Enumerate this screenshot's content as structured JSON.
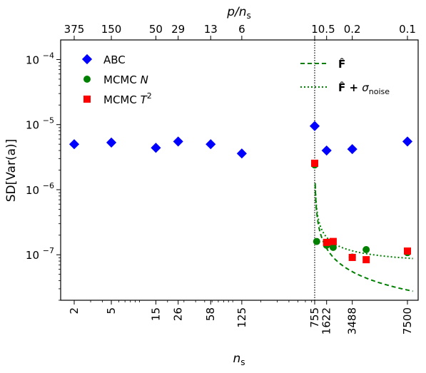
{
  "chart_data": {
    "type": "scatter",
    "xlabel_main": "n",
    "xlabel_sub": "s",
    "ylabel": "SD[Var(a)]",
    "top_axis": {
      "label_main": "p/n",
      "label_sub": "s",
      "ticks": [
        {
          "n": 2,
          "label": "375"
        },
        {
          "n": 5,
          "label": "150"
        },
        {
          "n": 15,
          "label": "50"
        },
        {
          "n": 26,
          "label": "29"
        },
        {
          "n": 58,
          "label": "13"
        },
        {
          "n": 125,
          "label": "6"
        },
        {
          "n": 755,
          "label": "1"
        },
        {
          "n": 1622,
          "label": "0.5"
        },
        {
          "n": 3488,
          "label": "0.2"
        },
        {
          "n": 7500,
          "label": "0.1"
        }
      ]
    },
    "x_ticks": [
      {
        "n": 2,
        "label": "2"
      },
      {
        "n": 5,
        "label": "5"
      },
      {
        "n": 15,
        "label": "15"
      },
      {
        "n": 26,
        "label": "26"
      },
      {
        "n": 58,
        "label": "58"
      },
      {
        "n": 125,
        "label": "125"
      },
      {
        "n": 755,
        "label": "755"
      },
      {
        "n": 1622,
        "label": "1622"
      },
      {
        "n": 3488,
        "label": "3488"
      },
      {
        "n": 7500,
        "label": "7500"
      }
    ],
    "x_scale": "log below 755, linear above 755",
    "y_scale": "log",
    "ylim": [
      2e-08,
      0.0002
    ],
    "y_ticks": [
      {
        "value": 1e-07,
        "label_base": "10",
        "label_exp": "−7"
      },
      {
        "value": 1e-06,
        "label_base": "10",
        "label_exp": "−6"
      },
      {
        "value": 1e-05,
        "label_base": "10",
        "label_exp": "−5"
      },
      {
        "value": 0.0001,
        "label_base": "10",
        "label_exp": "−4"
      }
    ],
    "reference_line": {
      "x": 755,
      "style": "dotted",
      "color": "#000000"
    },
    "series": [
      {
        "name": "ABC",
        "marker": "diamond",
        "color": "#0000ff",
        "points": [
          {
            "x": 2,
            "y": 5e-06
          },
          {
            "x": 5,
            "y": 5.3e-06
          },
          {
            "x": 15,
            "y": 4.4e-06
          },
          {
            "x": 26,
            "y": 5.5e-06
          },
          {
            "x": 58,
            "y": 5e-06
          },
          {
            "x": 125,
            "y": 3.6e-06
          },
          {
            "x": 755,
            "y": 9.5e-06
          },
          {
            "x": 1622,
            "y": 4e-06
          },
          {
            "x": 3488,
            "y": 4.2e-06
          },
          {
            "x": 7500,
            "y": 5.5e-06
          }
        ]
      },
      {
        "name": "MCMC N",
        "marker": "circle",
        "color": "#008000",
        "points": [
          {
            "x": 755,
            "y": 2.4e-06
          },
          {
            "x": 900,
            "y": 1.6e-07
          },
          {
            "x": 1622,
            "y": 1.4e-07
          },
          {
            "x": 2100,
            "y": 1.3e-07
          },
          {
            "x": 3488,
            "y": 9.2e-08
          },
          {
            "x": 4500,
            "y": 1.2e-07
          },
          {
            "x": 7500,
            "y": 1.08e-07
          }
        ]
      },
      {
        "name": "MCMC T^2",
        "marker": "square",
        "color": "#ff0000",
        "points": [
          {
            "x": 755,
            "y": 2.55e-06
          },
          {
            "x": 1622,
            "y": 1.55e-07
          },
          {
            "x": 2100,
            "y": 1.6e-07
          },
          {
            "x": 3488,
            "y": 9.1e-08
          },
          {
            "x": 4500,
            "y": 8.4e-08
          },
          {
            "x": 7500,
            "y": 1.14e-07
          }
        ]
      },
      {
        "name": "F hat",
        "line_style": "dashed",
        "color": "#008000",
        "curve": "y = 3.4e-9 * 755 / sqrt((n - 755) / 7)... approx"
      },
      {
        "name": "F hat + sigma_noise",
        "line_style": "dotted",
        "color": "#008000"
      }
    ],
    "legend": {
      "placement_left": "top-left",
      "placement_right": "top-right",
      "entries": [
        {
          "key": "abc",
          "text": "ABC",
          "sup": "",
          "sub": ""
        },
        {
          "key": "mcmcn",
          "text": "MCMC ",
          "italic": "N",
          "sup": "",
          "sub": ""
        },
        {
          "key": "mcmct",
          "text": "MCMC ",
          "italic": "T",
          "sup": "2",
          "sub": ""
        },
        {
          "key": "fhat",
          "text": "F̂",
          "sup": "",
          "sub": ""
        },
        {
          "key": "fhatnoise",
          "text": "F̂ + ",
          "italic": "σ",
          "sup": "",
          "sub": "noise"
        }
      ]
    }
  }
}
